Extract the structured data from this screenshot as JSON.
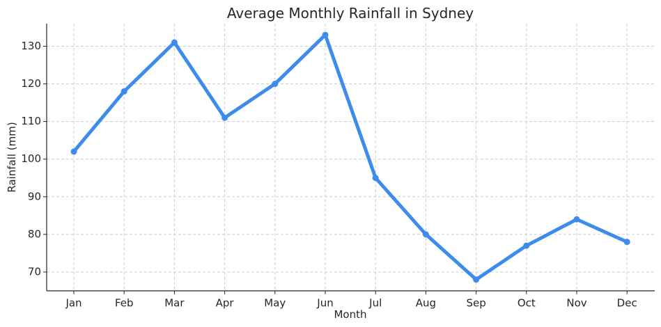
{
  "chart_data": {
    "type": "line",
    "title": "Average Monthly Rainfall in Sydney",
    "xlabel": "Month",
    "ylabel": "Rainfall (mm)",
    "categories": [
      "Jan",
      "Feb",
      "Mar",
      "Apr",
      "May",
      "Jun",
      "Jul",
      "Aug",
      "Sep",
      "Oct",
      "Nov",
      "Dec"
    ],
    "series": [
      {
        "values": [
          102,
          118,
          131,
          111,
          120,
          133,
          95,
          80,
          68,
          77,
          84,
          78
        ]
      }
    ],
    "yticks": [
      70,
      80,
      90,
      100,
      110,
      120,
      130
    ],
    "ylim": [
      65,
      136
    ],
    "grid": true,
    "line_color": "#3d8ced"
  }
}
